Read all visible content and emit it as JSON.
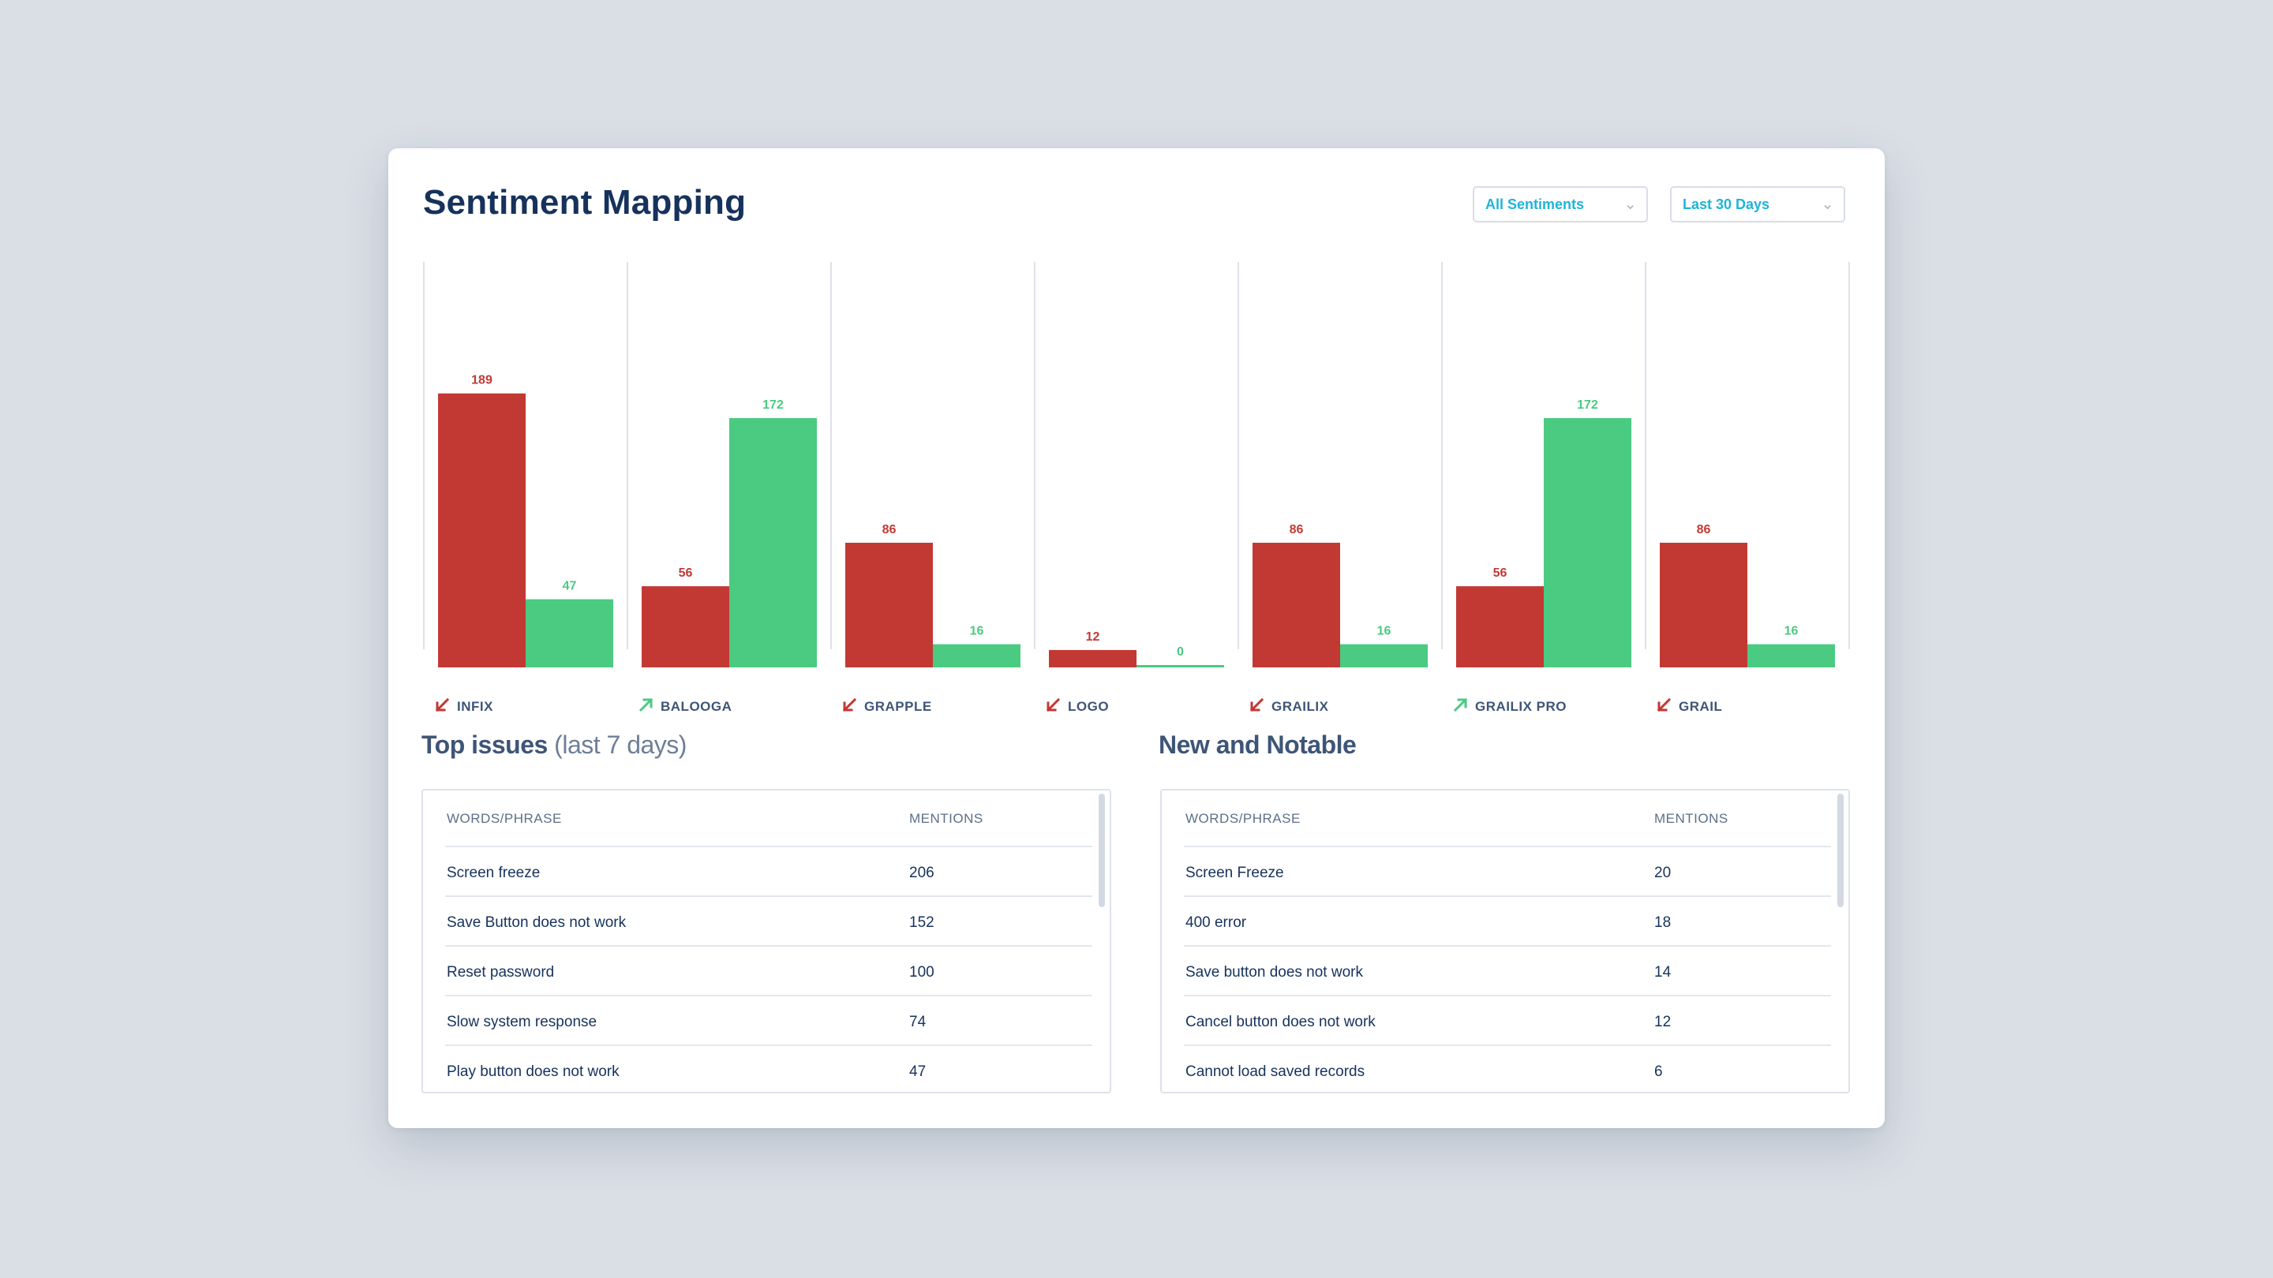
{
  "header": {
    "title": "Sentiment Mapping",
    "sentiment_filter": "All Sentiments",
    "date_filter": "Last 30 Days"
  },
  "colors": {
    "negative": "#c23934",
    "positive": "#4bca81",
    "title": "#16325c",
    "accent": "#1fb4d9"
  },
  "chart_data": {
    "type": "bar",
    "categories": [
      "INFIX",
      "BALOOGA",
      "GRAPPLE",
      "LOGO",
      "GRAILIX",
      "GRAILIX PRO",
      "GRAIL"
    ],
    "trend_icons": [
      "arrow-down-left-icon",
      "arrow-up-right-icon",
      "arrow-down-left-icon",
      "arrow-down-left-icon",
      "arrow-down-left-icon",
      "arrow-up-right-icon",
      "arrow-down-left-icon"
    ],
    "trends": [
      "down",
      "up",
      "down",
      "down",
      "down",
      "up",
      "down"
    ],
    "series": [
      {
        "values": [
          189,
          56,
          86,
          12,
          86,
          56,
          86
        ]
      },
      {
        "values": [
          47,
          172,
          16,
          0,
          16,
          172,
          16
        ]
      }
    ],
    "ylim": [
      0,
      320
    ],
    "grid": false
  },
  "top_issues": {
    "title": "Top issues",
    "subtitle": "(last 7 days)",
    "col_phrase": "WORDS/PHRASE",
    "col_mentions": "MENTIONS",
    "rows": [
      {
        "phrase": "Screen freeze",
        "mentions": "206"
      },
      {
        "phrase": "Save Button does not work",
        "mentions": "152"
      },
      {
        "phrase": "Reset password",
        "mentions": "100"
      },
      {
        "phrase": "Slow system response",
        "mentions": "74"
      },
      {
        "phrase": "Play button does not work",
        "mentions": "47"
      }
    ]
  },
  "new_notable": {
    "title": "New and Notable",
    "col_phrase": "WORDS/PHRASE",
    "col_mentions": "MENTIONS",
    "rows": [
      {
        "phrase": "Screen Freeze",
        "mentions": "20"
      },
      {
        "phrase": "400 error",
        "mentions": "18"
      },
      {
        "phrase": "Save button does not work",
        "mentions": "14"
      },
      {
        "phrase": "Cancel button does not work",
        "mentions": "12"
      },
      {
        "phrase": "Cannot load saved records",
        "mentions": "6"
      }
    ]
  }
}
